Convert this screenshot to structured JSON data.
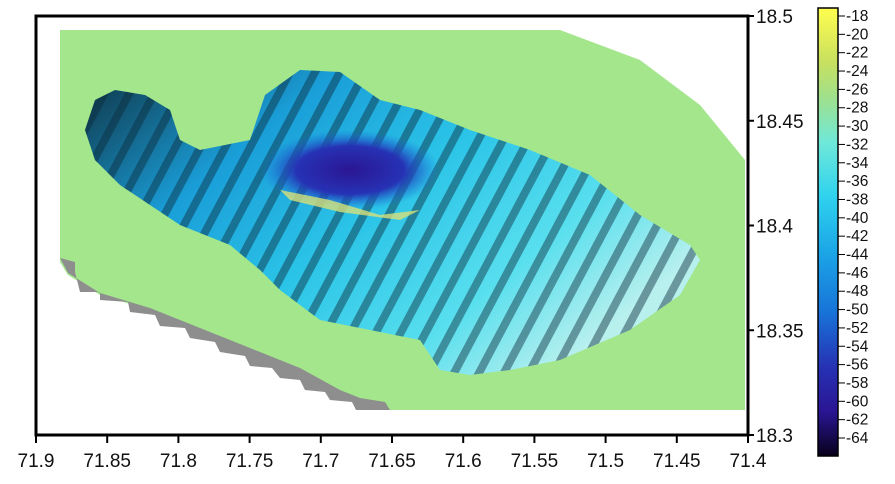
{
  "chart_data": {
    "type": "heatmap",
    "title": "",
    "xlabel": "",
    "ylabel": "",
    "x_reversed": true,
    "xlim": [
      71.9,
      71.4
    ],
    "ylim": [
      18.3,
      18.5
    ],
    "x_ticks": [
      "71.9",
      "71.85",
      "71.8",
      "71.75",
      "71.7",
      "71.65",
      "71.6",
      "71.55",
      "71.5",
      "71.45",
      "71.4"
    ],
    "x_tick_values": [
      71.9,
      71.85,
      71.8,
      71.75,
      71.7,
      71.65,
      71.6,
      71.55,
      71.5,
      71.45,
      71.4
    ],
    "y_ticks": [
      "18.3",
      "18.35",
      "18.4",
      "18.45",
      "18.5"
    ],
    "y_tick_values": [
      18.3,
      18.35,
      18.4,
      18.45,
      18.5
    ],
    "y_axis_side": "right",
    "colorbar": {
      "min": -64,
      "max": -18,
      "labels": [
        "-18",
        "-20",
        "-22",
        "-24",
        "-26",
        "-28",
        "-30",
        "-32",
        "-34",
        "-36",
        "-38",
        "-40",
        "-42",
        "-44",
        "-46",
        "-48",
        "-50",
        "-52",
        "-54",
        "-56",
        "-58",
        "-60",
        "-62",
        "-64"
      ],
      "colors": [
        "#fffe4e",
        "#c8e05f",
        "#9fe08c",
        "#6fe8d8",
        "#2fd2ee",
        "#1ba4e6",
        "#1873d8",
        "#2632b4",
        "#2a1694",
        "#08001a"
      ]
    },
    "background_value": -27,
    "background_color": "#a3e68b",
    "deep_region": "dark-blue band around 71.65–71.7 E, 18.41–18.44 N",
    "colors": {
      "land_fill": "#a3e68b",
      "shadow_steps": "#8e8e8e"
    }
  }
}
